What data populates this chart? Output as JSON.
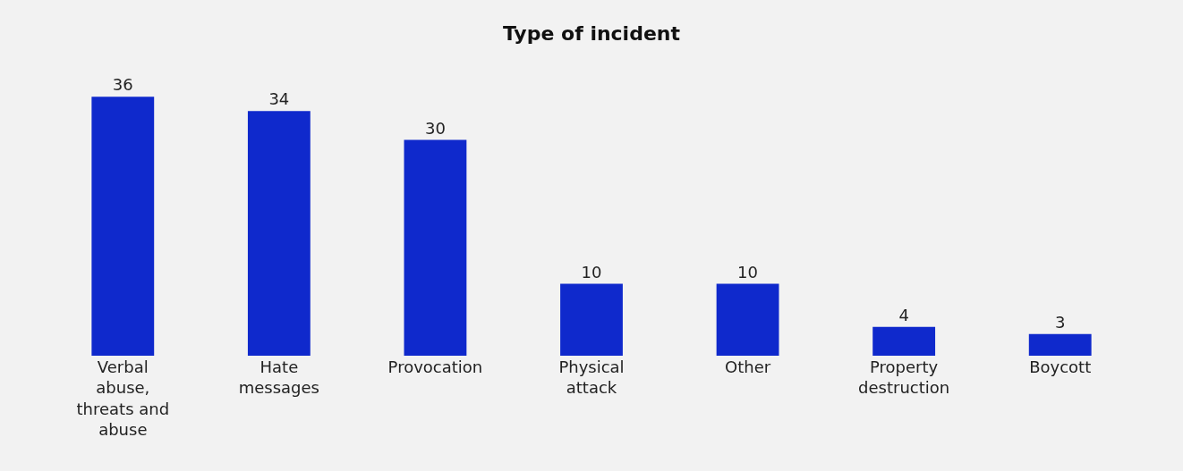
{
  "chart_data": {
    "type": "bar",
    "title": "Type of incident",
    "categories": [
      "Verbal abuse, threats and abuse",
      "Hate messages",
      "Provocation",
      "Physical attack",
      "Other",
      "Property destruction",
      "Boycott"
    ],
    "values": [
      36,
      34,
      30,
      10,
      10,
      4,
      3
    ],
    "color": "#0f29cc",
    "data_labels": true
  }
}
